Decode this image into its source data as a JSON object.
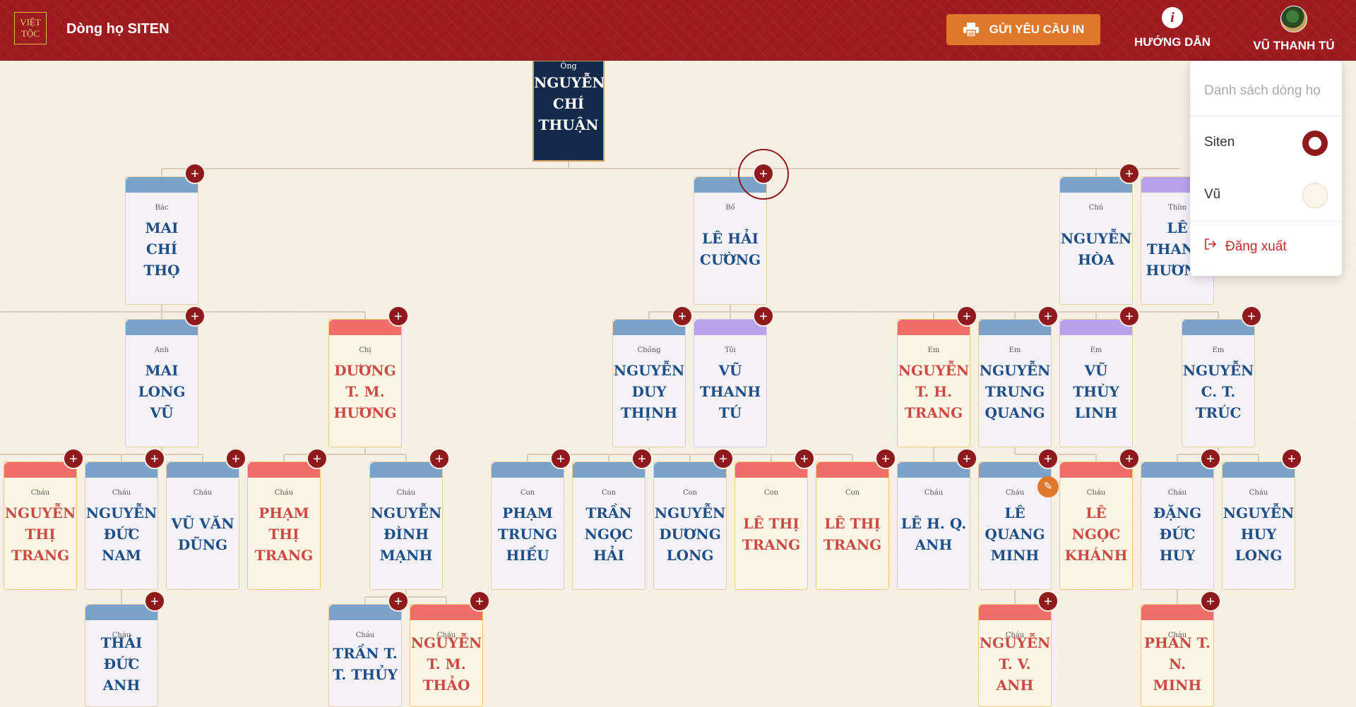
{
  "header": {
    "logo_line1": "VIỆT",
    "logo_line2": "TỘC",
    "title": "Dòng họ SITEN",
    "print_label": "GỬI YÊU CẦU IN",
    "help_label": "HƯỚNG DẪN",
    "help_icon": "i",
    "user_label": "VŨ THANH TÚ"
  },
  "dropdown": {
    "heading": "Danh sách dòng họ",
    "items": [
      {
        "label": "Siten",
        "selected": true
      },
      {
        "label": "Vũ",
        "selected": false
      }
    ],
    "logout_label": "Đăng xuất"
  },
  "colors": {
    "header_bg": "#9e1b1f",
    "accent_orange": "#e0782b",
    "male_cap": "#7da2c9",
    "female_cap": "#ef6e6a",
    "self_cap": "#b8a2ea",
    "male_name": "#1f4f87",
    "female_name": "#cc4a45"
  },
  "tree": {
    "root": {
      "rel": "Ông",
      "name": "NGUYỄN CHÍ THUẬN"
    },
    "people": [
      {
        "rel": "Bác",
        "name": "MAI CHÍ THỌ"
      },
      {
        "rel": "Bố",
        "name": "LÊ HẢI CƯỜNG"
      },
      {
        "rel": "Chú",
        "name": "NGUYỄN HÒA"
      },
      {
        "rel": "Thím",
        "name": "LÊ THANH HƯƠNG"
      },
      {
        "rel": "Anh",
        "name": "MAI LONG VŨ"
      },
      {
        "rel": "Chị",
        "name": "DƯƠNG T. M. HƯƠNG"
      },
      {
        "rel": "Chồng",
        "name": "NGUYỄN DUY THỊNH"
      },
      {
        "rel": "Tôi",
        "name": "VŨ THANH TÚ"
      },
      {
        "rel": "Em",
        "name": "NGUYỄN T. H. TRANG"
      },
      {
        "rel": "Em",
        "name": "NGUYỄN TRUNG QUANG"
      },
      {
        "rel": "Em",
        "name": "VŨ THÙY LINH"
      },
      {
        "rel": "Em",
        "name": "NGUYỄN C. T. TRÚC"
      },
      {
        "rel": "Cháu",
        "name": "NGUYỄN THỊ TRANG"
      },
      {
        "rel": "Cháu",
        "name": "NGUYỄN ĐỨC NAM"
      },
      {
        "rel": "Cháu",
        "name": "VŨ VĂN DŨNG"
      },
      {
        "rel": "Cháu",
        "name": "PHẠM THỊ TRANG"
      },
      {
        "rel": "Cháu",
        "name": "NGUYỄN ĐÌNH MẠNH"
      },
      {
        "rel": "Con",
        "name": "PHẠM TRUNG HIẾU"
      },
      {
        "rel": "Con",
        "name": "TRẦN NGỌC HẢI"
      },
      {
        "rel": "Con",
        "name": "NGUYỄN DƯƠNG LONG"
      },
      {
        "rel": "Con",
        "name": "LÊ THỊ TRANG"
      },
      {
        "rel": "Con",
        "name": "LÊ THỊ TRANG"
      },
      {
        "rel": "Cháu",
        "name": "LÊ H. Q. ANH"
      },
      {
        "rel": "Cháu",
        "name": "LÊ QUANG MINH"
      },
      {
        "rel": "Cháu",
        "name": "LÊ NGỌC KHÁNH"
      },
      {
        "rel": "Cháu",
        "name": "ĐẶNG ĐỨC HUY"
      },
      {
        "rel": "Cháu",
        "name": "NGUYỄN HUY LONG"
      },
      {
        "rel": "Cháu",
        "name": "THÁI ĐỨC ANH"
      },
      {
        "rel": "Cháu",
        "name": "TRẦN T. T. THỦY"
      },
      {
        "rel": "Cháu",
        "name": "NGUYỄN T. M. THẢO"
      },
      {
        "rel": "Cháu",
        "name": "NGUYỄN T. V. ANH"
      },
      {
        "rel": "Cháu",
        "name": "PHAN T. N. MINH"
      }
    ]
  }
}
